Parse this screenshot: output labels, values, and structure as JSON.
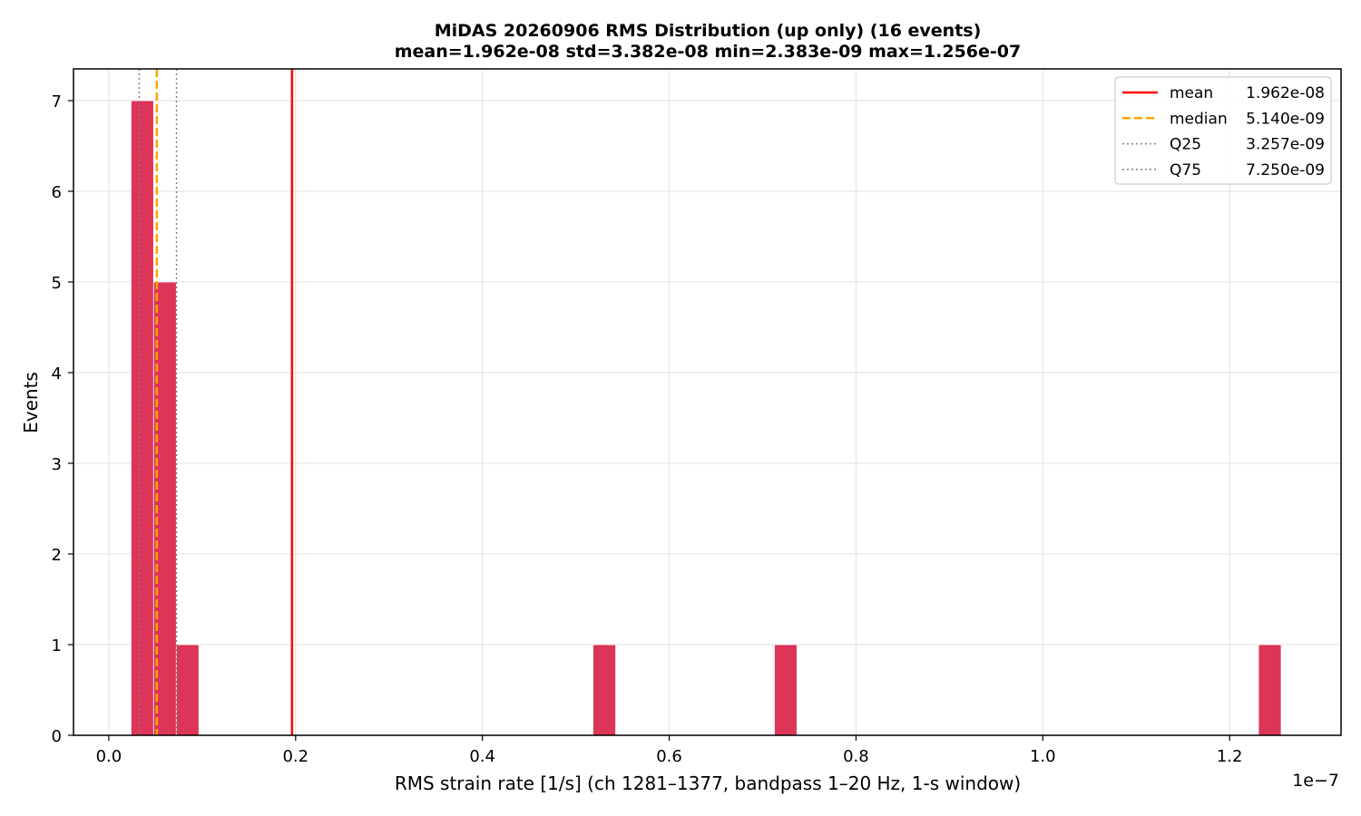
{
  "chart_data": {
    "type": "bar",
    "title_line1": "MiDAS 20260906  RMS Distribution  (up only)  (16 events)",
    "title_line2": "mean=1.962e-08  std=3.382e-08  min=2.383e-09  max=1.256e-07",
    "xlabel": "RMS strain rate [1/s]  (ch 1281–1377, bandpass 1–20 Hz, 1-s window)",
    "ylabel": "Events",
    "x_offset_label": "1e−7",
    "x_scale": 1e-07,
    "xlim": [
      -0.0378,
      1.3193
    ],
    "ylim": [
      0,
      7.35
    ],
    "x_ticks": [
      0.0,
      0.2,
      0.4,
      0.6,
      0.8,
      1.0,
      1.2
    ],
    "x_tick_labels": [
      "0.0",
      "0.2",
      "0.4",
      "0.6",
      "0.8",
      "1.0",
      "1.2"
    ],
    "y_ticks": [
      0,
      1,
      2,
      3,
      4,
      5,
      6,
      7
    ],
    "y_tick_labels": [
      "0",
      "1",
      "2",
      "3",
      "4",
      "5",
      "6",
      "7"
    ],
    "grid": true,
    "bar_color": "#dc3558",
    "bins": [
      {
        "x0": 0.0238,
        "x1": 0.048,
        "count": 7
      },
      {
        "x0": 0.048,
        "x1": 0.0723,
        "count": 5
      },
      {
        "x0": 0.0723,
        "x1": 0.0965,
        "count": 1
      },
      {
        "x0": 0.5184,
        "x1": 0.5427,
        "count": 1
      },
      {
        "x0": 0.7126,
        "x1": 0.7368,
        "count": 1
      },
      {
        "x0": 1.2309,
        "x1": 1.2552,
        "count": 1
      }
    ],
    "reference_lines": [
      {
        "name": "mean",
        "value_label": "1.962e-08",
        "x": 0.1962,
        "color": "#ff0000",
        "style": "solid"
      },
      {
        "name": "median",
        "value_label": "5.140e-09",
        "x": 0.0514,
        "color": "#ffa500",
        "style": "dashed"
      },
      {
        "name": "Q25",
        "value_label": "3.257e-09",
        "x": 0.03257,
        "color": "#808080",
        "style": "dotted"
      },
      {
        "name": "Q75",
        "value_label": "7.250e-09",
        "x": 0.0725,
        "color": "#808080",
        "style": "dotted"
      }
    ],
    "legend_position": "top-right"
  }
}
